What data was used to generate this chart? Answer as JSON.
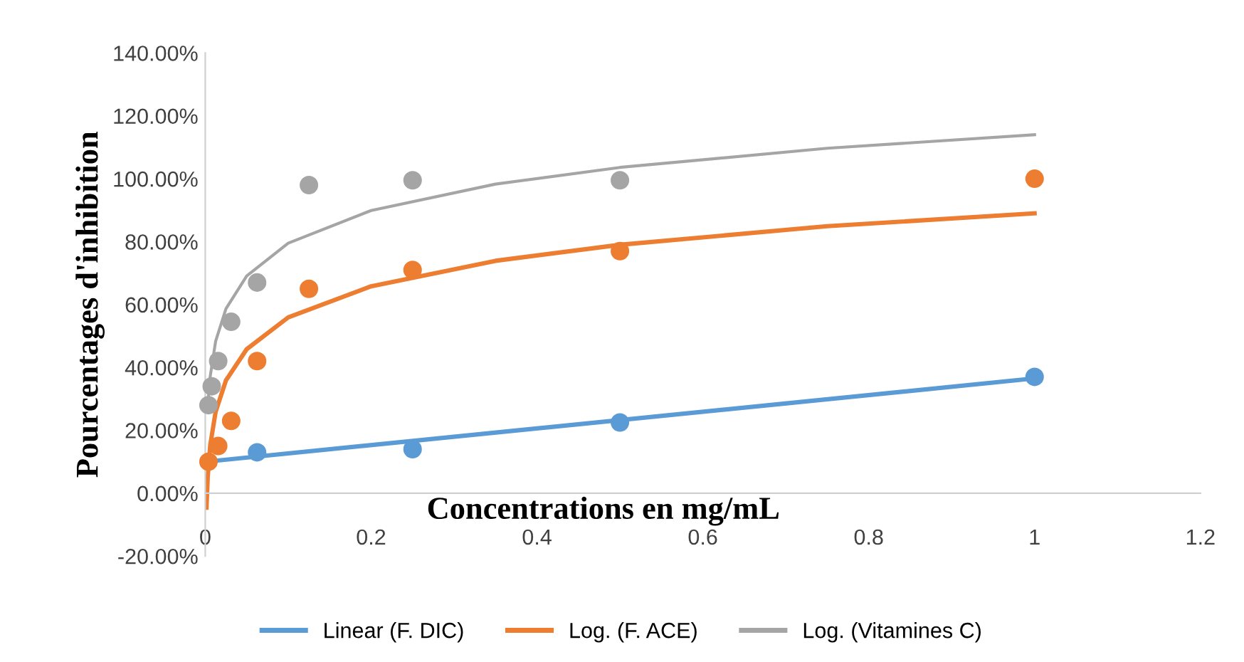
{
  "chart_data": {
    "type": "scatter",
    "xlabel": "Concentrations en mg/mL",
    "ylabel": "Pourcentages d'inhibition",
    "xlim": [
      0,
      1.2
    ],
    "xticks": [
      0,
      0.2,
      0.4,
      0.6,
      0.8,
      1,
      1.2
    ],
    "ylim": [
      -20,
      140
    ],
    "yticks": [
      {
        "value": -20,
        "label": "-20.00%"
      },
      {
        "value": 0,
        "label": "0.00%"
      },
      {
        "value": 20,
        "label": "20.00%"
      },
      {
        "value": 40,
        "label": "40.00%"
      },
      {
        "value": 60,
        "label": "60.00%"
      },
      {
        "value": 80,
        "label": "80.00%"
      },
      {
        "value": 100,
        "label": "100.00%"
      },
      {
        "value": 120,
        "label": "120.00%"
      },
      {
        "value": 140,
        "label": "140.00%"
      }
    ],
    "grid": false,
    "legend": "bottom",
    "marker": "circle",
    "series": [
      {
        "color": "#5b9bd5",
        "x": [
          0.0625,
          0.25,
          0.5,
          1
        ],
        "values": [
          13,
          14,
          22.5,
          37
        ]
      },
      {
        "color": "#ed7d31",
        "x": [
          0.0039,
          0.0078,
          0.0156,
          0.03125,
          0.0625,
          0.125,
          0.25,
          0.5,
          1
        ],
        "values": [
          10,
          null,
          15,
          23,
          42,
          65,
          71,
          77,
          100
        ]
      },
      {
        "color": "#a5a5a5",
        "x": [
          0.0039,
          0.0078,
          0.0156,
          0.03125,
          0.0625,
          0.125,
          0.25,
          0.5
        ],
        "values": [
          28,
          34,
          42,
          54.5,
          67,
          98,
          99.5,
          99.5
        ]
      },
      {
        "type": "line",
        "name": "Linear (F. DIC)",
        "color": "#5b9bd5",
        "marker": "none",
        "x": [
          0,
          1
        ],
        "values": [
          10,
          36.5
        ]
      },
      {
        "type": "line",
        "name": "Log. (F. ACE)",
        "color": "#ed7d31",
        "marker": "none",
        "x": [
          0.0015,
          0.003,
          0.006,
          0.0125,
          0.025,
          0.05,
          0.1,
          0.2,
          0.35,
          0.5,
          0.75,
          1
        ],
        "values": [
          -4.6,
          5.3,
          15.3,
          25.9,
          35.9,
          45.8,
          55.9,
          65.8,
          73.9,
          79,
          84.9,
          89
        ]
      },
      {
        "type": "line",
        "name": "Log. (Vitamines C)",
        "color": "#a5a5a5",
        "marker": "none",
        "x": [
          0.0039,
          0.006,
          0.0125,
          0.025,
          0.05,
          0.1,
          0.2,
          0.35,
          0.5,
          0.75,
          1
        ],
        "values": [
          30.8,
          37.2,
          48.3,
          58.7,
          69.1,
          79.5,
          89.9,
          98.3,
          103.6,
          109.7,
          114
        ]
      }
    ]
  }
}
